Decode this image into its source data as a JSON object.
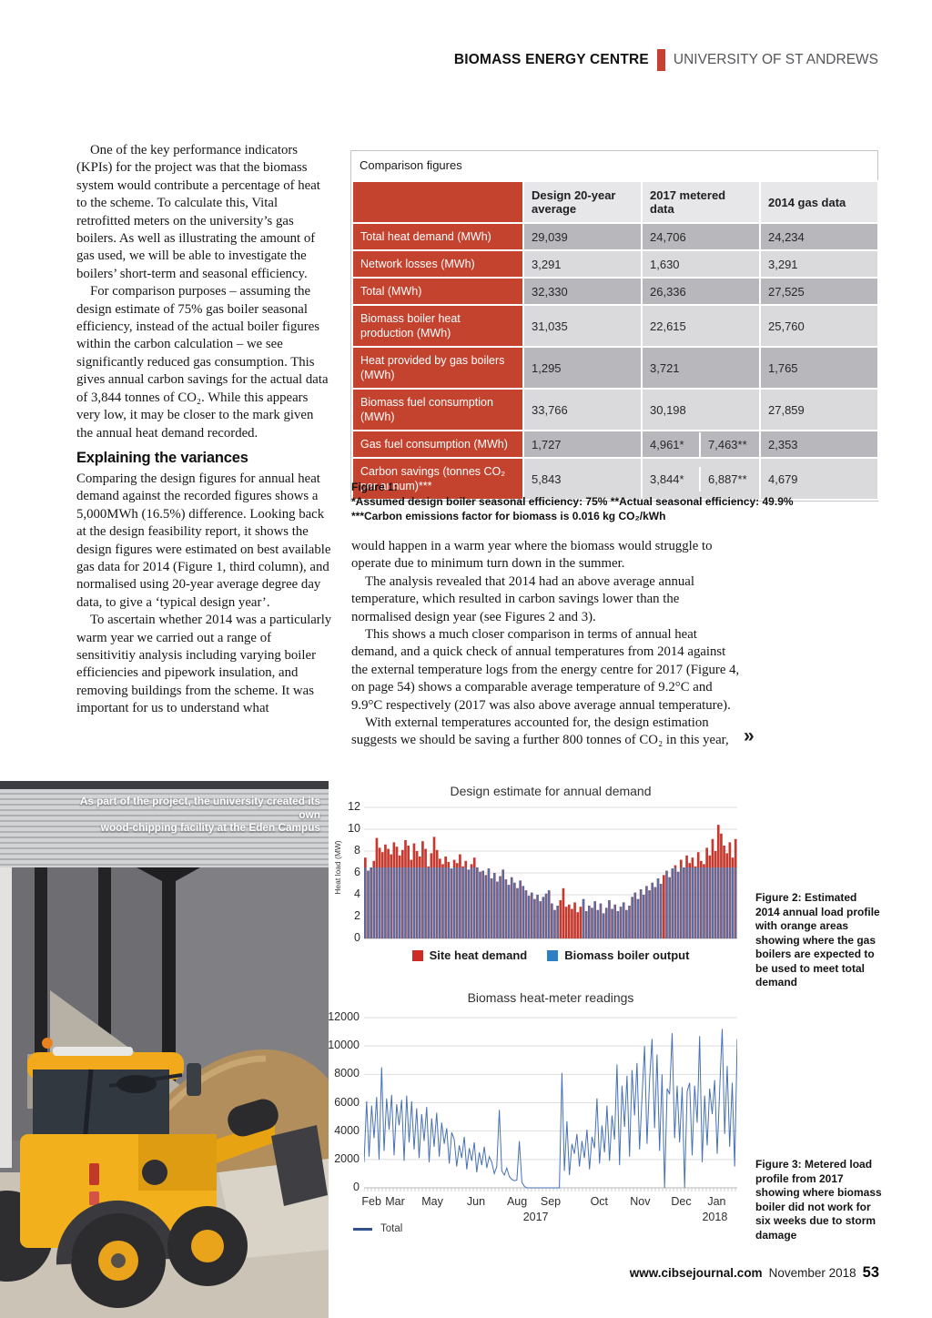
{
  "header": {
    "title": "BIOMASS ENERGY CENTRE",
    "subtitle": "UNIVERSITY OF ST ANDREWS",
    "accent_color": "#c8402f"
  },
  "article": {
    "col1_para1": "One of the key performance indicators (KPIs) for the project was that the biomass system would contribute a percentage of heat to the scheme. To calculate this, Vital retrofitted meters on the university’s gas boilers. As well as illustrating the amount of gas used, we will be able to investigate the boilers’ short-term and seasonal efficiency.",
    "col1_para2": "For comparison purposes – assuming the design estimate of 75% gas boiler seasonal efficiency, instead of the actual boiler figures within the carbon calculation – we see significantly reduced gas consumption. This gives annual carbon savings for the actual data of 3,844 tonnes of CO₂. While this appears very low, it may be closer to the mark given the annual heat demand recorded.",
    "col1_heading": "Explaining the variances",
    "col1_para3": "Comparing the design figures for annual heat demand against the recorded figures shows a 5,000MWh (16.5%) difference. Looking back at the design feasibility report, it shows the design figures were estimated on best available gas data for 2014 (Figure 1, third column), and normalised using 20-year average degree day data, to give a ‘typical design year’.",
    "col1_para4": "To ascertain whether 2014 was a particularly warm year we carried out a range of sensitivitiy analysis including varying boiler efficiencies and pipework insulation, and removing buildings from the scheme. It was important for us to understand what",
    "col2_para1": "would happen in a warm year where the biomass would struggle to operate due to minimum turn down in the summer.",
    "col2_para2": "The analysis revealed that 2014 had an above average annual temperature, which resulted in carbon savings lower than the normalised design year (see Figures 2 and 3).",
    "col2_para3": "This shows a much closer comparison in terms of annual heat demand, and a quick check of annual temperatures from 2014 against the external temperature logs from the energy centre for 2017 (Figure 4, on page 54) shows a comparable average temperature of 9.2°C and 9.9°C respectively (2017 was also above average annual temperature).",
    "col2_para4": "With external temperatures accounted for, the design estimation suggests we should be saving a further 800 tonnes of CO₂ in this year,",
    "continuation_mark": "»"
  },
  "table": {
    "title": "Comparison figures",
    "columns": [
      "",
      "Design 20-year average",
      "2017 metered data",
      "2014 gas data"
    ],
    "rows": [
      {
        "label": "Total heat demand (MWh)",
        "values": [
          "29,039",
          "24,706",
          "24,234"
        ]
      },
      {
        "label": "Network losses (MWh)",
        "values": [
          "3,291",
          "1,630",
          "3,291"
        ]
      },
      {
        "label": "Total (MWh)",
        "values": [
          "32,330",
          "26,336",
          "27,525"
        ]
      },
      {
        "label": "Biomass boiler heat production (MWh)",
        "values": [
          "31,035",
          "22,615",
          "25,760"
        ]
      },
      {
        "label": "Heat provided by gas boilers (MWh)",
        "values": [
          "1,295",
          "3,721",
          "1,765"
        ]
      },
      {
        "label": "Biomass fuel consumption (MWh)",
        "values": [
          "33,766",
          "30,198",
          "27,859"
        ]
      },
      {
        "label": "Gas fuel consumption (MWh)",
        "values": [
          "1,727",
          [
            "4,961*",
            "7,463**"
          ],
          "2,353"
        ]
      },
      {
        "label": "Carbon savings (tonnes CO₂ per annum)***",
        "values": [
          "5,843",
          [
            "3,844*",
            "6,887**"
          ],
          "4,679"
        ]
      }
    ],
    "label_bg": "#c4432f",
    "row_bg_dark": "#b8b8bc",
    "row_bg_light": "#dadadc"
  },
  "figure1": {
    "line1": "Figure 1:",
    "line2": "*Assumed design boiler seasonal efficiency: 75% **Actual seasonal efficiency: 49.9%",
    "line3": "***Carbon emissions factor for biomass is 0.016 kg CO₂/kWh"
  },
  "photo": {
    "caption_line1": "As part of the project, the university created its own",
    "caption_line2": "wood-chipping facility at the Eden Campus"
  },
  "figure2_caption": "Figure 2: Estimated 2014 annual load profile with orange areas showing where the gas boilers are expected to be used to meet total demand",
  "figure3_caption": "Figure 3: Metered load profile from 2017 showing where biomass boiler did not work for six weeks due to storm damage",
  "footer": {
    "site": "www.cibsejournal.com",
    "issue": "November 2018",
    "page_number": "53"
  },
  "chart_data": [
    {
      "type": "bar",
      "title": "Design estimate for annual demand",
      "xlabel": "",
      "ylabel": "Heat load (MW)",
      "ylim": [
        0,
        12
      ],
      "yticks": [
        0,
        2,
        4,
        6,
        8,
        10,
        12
      ],
      "grid": true,
      "legend_position": "bottom",
      "boiler_output_cap_mw": 6.5,
      "boiler_off_ranges": [
        [
          68,
          75
        ],
        [
          104,
          104
        ]
      ],
      "legend": [
        {
          "label": "Site heat demand",
          "color": "#ce2b24"
        },
        {
          "label": "Biomass boiler output",
          "color": "#2e80c4"
        }
      ],
      "series": [
        {
          "name": "Site heat demand",
          "color": "#c5392f",
          "values": [
            7.4,
            6.2,
            6.5,
            7.1,
            9.2,
            8.3,
            7.9,
            8.6,
            8.2,
            7.7,
            8.8,
            8.4,
            7.6,
            8.1,
            9.0,
            8.5,
            7.2,
            8.7,
            8.0,
            7.5,
            8.9,
            8.2,
            6.6,
            7.8,
            9.3,
            8.1,
            7.3,
            6.8,
            7.5,
            7.0,
            6.4,
            7.2,
            6.9,
            7.7,
            6.6,
            7.1,
            6.3,
            6.8,
            7.4,
            6.5,
            6.1,
            6.2,
            5.8,
            6.4,
            5.5,
            6.0,
            5.2,
            5.7,
            6.3,
            5.4,
            4.9,
            5.6,
            5.1,
            4.6,
            5.3,
            4.8,
            4.4,
            3.9,
            4.2,
            3.6,
            4.0,
            3.4,
            3.8,
            4.1,
            4.4,
            3.2,
            2.6,
            3.0,
            3.5,
            4.6,
            2.9,
            3.1,
            2.7,
            3.3,
            2.4,
            2.9,
            3.6,
            2.5,
            3.0,
            2.8,
            3.4,
            2.6,
            3.2,
            2.3,
            2.8,
            3.5,
            2.7,
            3.1,
            2.5,
            2.9,
            3.3,
            2.6,
            3.0,
            3.8,
            4.2,
            3.6,
            4.5,
            4.0,
            4.8,
            4.4,
            5.1,
            4.7,
            5.5,
            5.0,
            5.8,
            6.2,
            5.6,
            6.4,
            6.7,
            6.1,
            7.2,
            6.5,
            7.6,
            6.9,
            7.4,
            6.6,
            7.9,
            7.1,
            6.8,
            8.3,
            7.6,
            9.1,
            8.0,
            10.4,
            9.6,
            8.5,
            7.8,
            8.8,
            7.4,
            9.1
          ]
        },
        {
          "name": "Biomass boiler output",
          "color": "#4a73b2",
          "derivation": "min(site heat demand, 6.5 MW cap); 0 during boiler_off_ranges"
        }
      ]
    },
    {
      "type": "line",
      "title": "Biomass heat-meter readings",
      "xlabel": "",
      "ylabel": "",
      "ylim": [
        0,
        12000
      ],
      "yticks": [
        0,
        2000,
        4000,
        6000,
        8000,
        10000,
        12000
      ],
      "grid": true,
      "legend_position": "bottom-left",
      "x_axis": {
        "months": [
          {
            "label": "Feb",
            "pos": 0.02
          },
          {
            "label": "Mar",
            "pos": 0.083
          },
          {
            "label": "May",
            "pos": 0.183
          },
          {
            "label": "Jun",
            "pos": 0.3
          },
          {
            "label": "Aug",
            "pos": 0.41
          },
          {
            "label": "Sep",
            "pos": 0.5
          },
          {
            "label": "Oct",
            "pos": 0.63
          },
          {
            "label": "Nov",
            "pos": 0.74
          },
          {
            "label": "Dec",
            "pos": 0.85
          },
          {
            "label": "Jan",
            "pos": 0.945
          }
        ],
        "year_labels": [
          {
            "label": "2017",
            "pos": 0.46
          },
          {
            "label": "2018",
            "pos": 0.94
          }
        ]
      },
      "series": [
        {
          "name": "Total",
          "color": "#4671b5",
          "values": [
            1800,
            6100,
            2200,
            5800,
            3500,
            6400,
            2000,
            8500,
            2600,
            6300,
            4100,
            6550,
            2300,
            5900,
            4400,
            6200,
            1900,
            6500,
            3200,
            6100,
            2700,
            5600,
            2100,
            5200,
            3300,
            5700,
            1800,
            4900,
            2900,
            5300,
            2200,
            4600,
            3100,
            4200,
            1700,
            3900,
            3400,
            1500,
            3000,
            2100,
            3600,
            1300,
            2800,
            1900,
            3200,
            1100,
            2500,
            1600,
            2900,
            1400,
            2200,
            1800,
            1000,
            1500,
            5500,
            1200,
            900,
            1400,
            800,
            600,
            500,
            550,
            3300,
            400,
            100,
            0,
            0,
            0,
            0,
            0,
            0,
            0,
            0,
            0,
            0,
            0,
            0,
            0,
            0,
            8100,
            1200,
            4700,
            900,
            3100,
            2400,
            3800,
            1500,
            3300,
            2100,
            4100,
            1300,
            3600,
            2800,
            6300,
            1700,
            4400,
            2500,
            5800,
            1900,
            5100,
            3400,
            8700,
            1600,
            7200,
            4300,
            7900,
            2200,
            8300,
            5100,
            8800,
            2700,
            6400,
            10000,
            3100,
            7600,
            10500,
            4200,
            9400,
            2600,
            8000,
            0,
            7000,
            6600,
            10900,
            3500,
            7200,
            3200,
            7100,
            0,
            6800,
            7400,
            2300,
            7200,
            4600,
            10700,
            1800,
            6500,
            3000,
            7000,
            5200,
            7600,
            2400,
            6900,
            11200,
            3800,
            8600,
            2900,
            7400,
            1500,
            10500
          ]
        }
      ]
    }
  ]
}
